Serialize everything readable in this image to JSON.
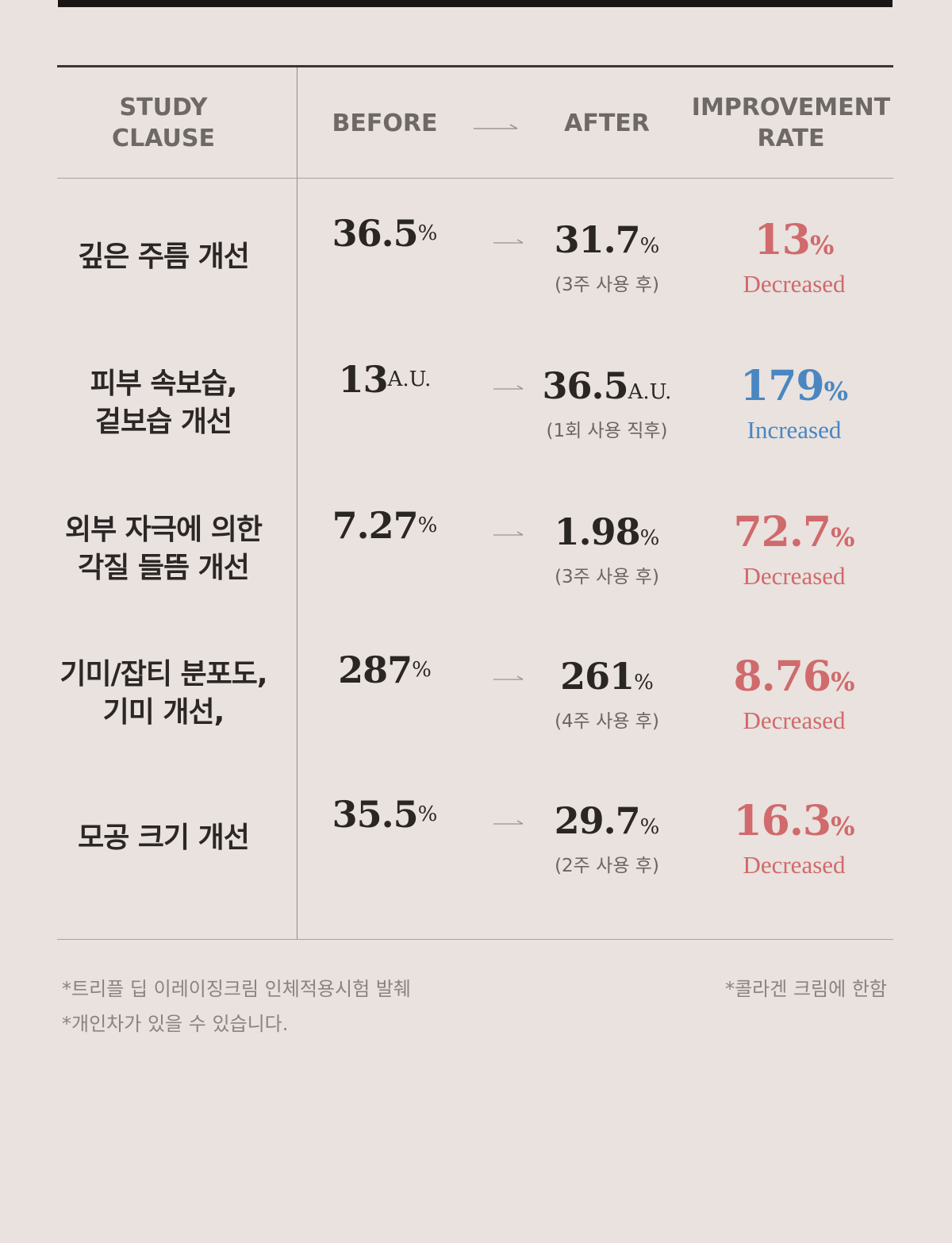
{
  "header": {
    "clause": [
      "STUDY",
      "CLAUSE"
    ],
    "before": "BEFORE",
    "after": "AFTER",
    "rate": [
      "IMPROVEMENT",
      "RATE"
    ]
  },
  "rows": [
    {
      "label": [
        "깊은 주름 개선"
      ],
      "before": "36.5",
      "before_unit": "%",
      "after": "31.7",
      "after_unit": "%",
      "note": "(3주 사용 후)",
      "rate": "13",
      "rate_unit": "%",
      "direction": "Decreased",
      "color": "#d06a6c"
    },
    {
      "label": [
        "피부 속보습,",
        "겉보습 개선"
      ],
      "before": "13",
      "before_unit": "A.U.",
      "after": "36.5",
      "after_unit": "A.U.",
      "note": "(1회 사용 직후)",
      "rate": "179",
      "rate_unit": "%",
      "direction": "Increased",
      "color": "#4a86c2"
    },
    {
      "label": [
        "외부 자극에 의한",
        "각질 들뜸 개선"
      ],
      "before": "7.27",
      "before_unit": "%",
      "after": "1.98",
      "after_unit": "%",
      "note": "(3주 사용 후)",
      "rate": "72.7",
      "rate_unit": "%",
      "direction": "Decreased",
      "color": "#d06a6c"
    },
    {
      "label": [
        "기미/잡티 분포도,",
        "기미 개선,"
      ],
      "before": "287",
      "before_unit": "%",
      "after": "261",
      "after_unit": "%",
      "note": "(4주 사용 후)",
      "rate": "8.76",
      "rate_unit": "%",
      "direction": "Decreased",
      "color": "#d06a6c"
    },
    {
      "label": [
        "모공 크기 개선"
      ],
      "before": "35.5",
      "before_unit": "%",
      "after": "29.7",
      "after_unit": "%",
      "note": "(2주 사용 후)",
      "rate": "16.3",
      "rate_unit": "%",
      "direction": "Decreased",
      "color": "#d06a6c"
    }
  ],
  "footnotes": {
    "left": [
      "*트리플 딥 이레이징크림 인체적용시험 발췌",
      "*개인차가 있을 수 있습니다."
    ],
    "right": "*콜라겐 크림에 한함"
  }
}
